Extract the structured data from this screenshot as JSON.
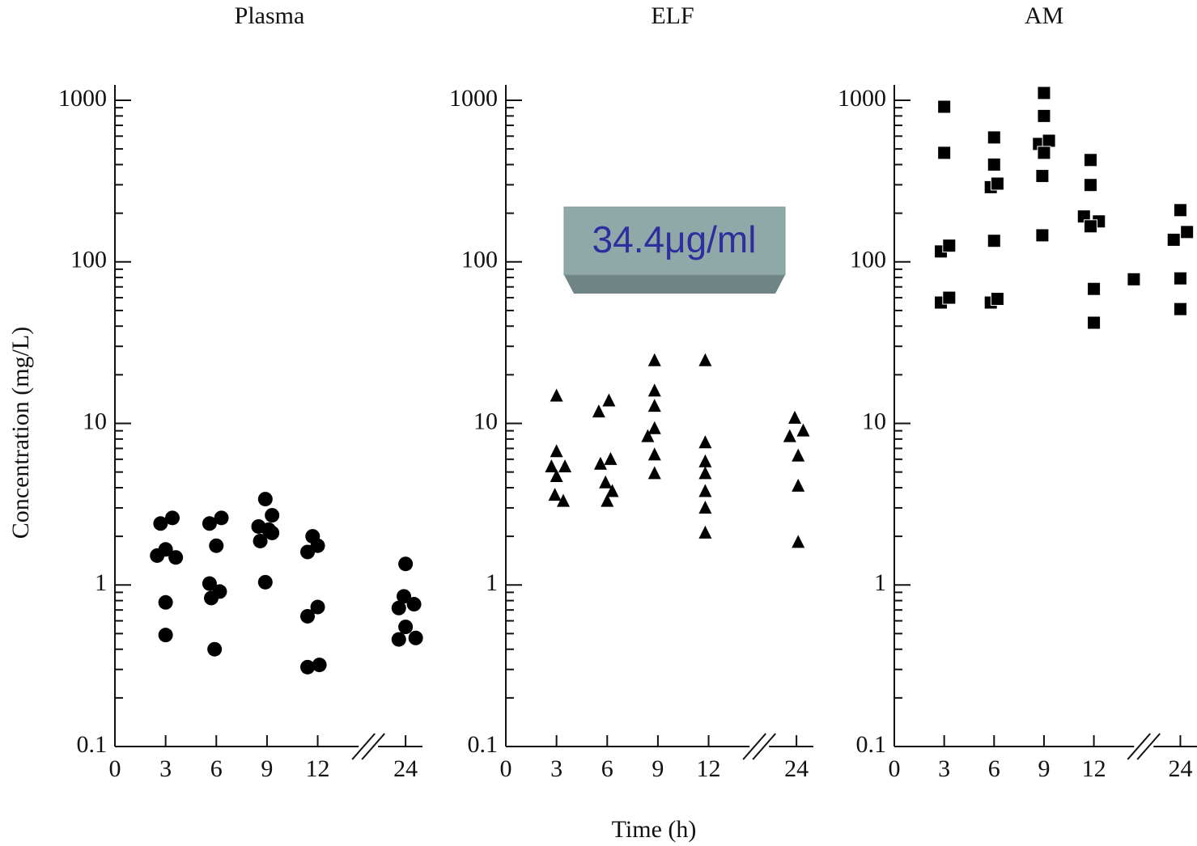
{
  "chart_data": [
    {
      "type": "scatter",
      "title": "Plasma",
      "ylabel": "Concentration (mg/L)",
      "marker": "circle",
      "color": "#000000",
      "log_y": true,
      "ylim": [
        0.1,
        1000
      ],
      "yticks": [
        0.1,
        1,
        10,
        100,
        1000
      ],
      "xlim": [
        0,
        25
      ],
      "xticks": [
        0,
        3,
        6,
        9,
        12,
        24
      ],
      "xbreak": [
        15,
        21.8
      ],
      "x": [
        2.7,
        3.4,
        3.0,
        2.5,
        3.6,
        3.0,
        3.0,
        5.6,
        6.3,
        6.0,
        5.6,
        6.2,
        5.7,
        5.9,
        8.9,
        9.3,
        8.5,
        9.1,
        8.6,
        9.3,
        8.9,
        11.7,
        12.0,
        11.4,
        12.0,
        11.4,
        11.4,
        12.1,
        24.0,
        23.9,
        24.5,
        23.6,
        24.0,
        23.6,
        24.6
      ],
      "values": [
        2.4,
        2.6,
        1.66,
        1.52,
        1.48,
        0.78,
        0.49,
        2.4,
        2.6,
        1.75,
        1.02,
        0.91,
        0.83,
        0.4,
        3.4,
        2.7,
        2.3,
        2.2,
        1.87,
        2.1,
        1.04,
        2.0,
        1.75,
        1.6,
        0.73,
        0.64,
        0.31,
        0.32,
        1.35,
        0.85,
        0.76,
        0.72,
        0.55,
        0.46,
        0.47
      ]
    },
    {
      "type": "scatter",
      "title": "ELF",
      "xlabel": "Time (h)",
      "annotation": "34.4μg/ml",
      "marker": "triangle",
      "color": "#000000",
      "log_y": true,
      "ylim": [
        0.1,
        1000
      ],
      "yticks": [
        0.1,
        1,
        10,
        100,
        1000
      ],
      "xlim": [
        0,
        25
      ],
      "xticks": [
        0,
        3,
        6,
        9,
        12,
        24
      ],
      "xbreak": [
        15,
        21.8
      ],
      "x": [
        3.0,
        3.0,
        2.7,
        3.5,
        3.0,
        2.9,
        3.4,
        6.1,
        5.5,
        6.2,
        5.6,
        5.9,
        6.3,
        6.0,
        8.8,
        8.8,
        8.8,
        8.8,
        8.4,
        8.8,
        8.8,
        11.8,
        11.8,
        11.8,
        11.8,
        11.8,
        11.8,
        11.8,
        23.9,
        23.6,
        24.4,
        24.1,
        24.1,
        24.1
      ],
      "values": [
        14.8,
        6.7,
        5.4,
        5.4,
        4.7,
        3.6,
        3.3,
        13.8,
        11.8,
        6.0,
        5.6,
        4.3,
        3.8,
        3.3,
        24.5,
        15.9,
        12.8,
        9.3,
        8.3,
        6.4,
        4.9,
        24.5,
        7.6,
        5.8,
        4.9,
        3.8,
        3.0,
        2.1,
        10.8,
        8.3,
        9.0,
        6.3,
        4.1,
        1.84
      ]
    },
    {
      "type": "scatter",
      "title": "AM",
      "marker": "square",
      "color": "#000000",
      "log_y": true,
      "ylim": [
        0.1,
        1000
      ],
      "yticks": [
        0.1,
        1,
        10,
        100,
        1000
      ],
      "xlim": [
        0,
        25
      ],
      "xticks": [
        0,
        3,
        6,
        9,
        12,
        24
      ],
      "xbreak": [
        15,
        21.8
      ],
      "x": [
        3.0,
        3.0,
        2.8,
        3.3,
        2.8,
        3.3,
        6.0,
        6.0,
        5.8,
        6.2,
        6.0,
        5.8,
        6.2,
        9.0,
        9.0,
        8.7,
        9.3,
        9.0,
        8.9,
        8.9,
        11.8,
        11.8,
        11.4,
        12.3,
        11.8,
        12.0,
        12.0,
        14.4,
        24.0,
        23.6,
        24.4,
        24.0,
        24.0
      ],
      "values": [
        912,
        473,
        116,
        126,
        56,
        60,
        589,
        400,
        290,
        305,
        135,
        56,
        59,
        1110,
        800,
        537,
        562,
        473,
        340,
        146,
        427,
        299,
        191,
        178,
        166,
        68,
        42,
        78,
        209,
        137,
        153,
        79,
        51
      ]
    }
  ]
}
